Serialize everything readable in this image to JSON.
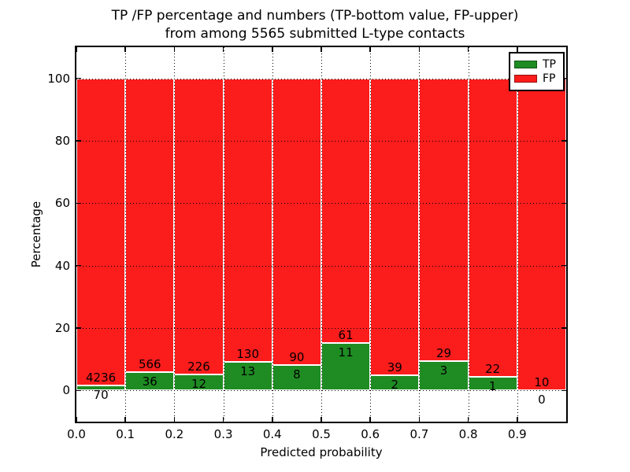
{
  "chart_data": {
    "type": "bar",
    "stacked": true,
    "title_line1": "TP /FP percentage and numbers (TP-bottom value, FP-upper)",
    "title_line2": "from among 5565 submitted L-type contacts",
    "total_contacts": 5565,
    "xlabel": "Predicted probability",
    "ylabel": "Percentage",
    "categories": [
      "0.0-0.1",
      "0.1-0.2",
      "0.2-0.3",
      "0.3-0.4",
      "0.4-0.5",
      "0.5-0.6",
      "0.6-0.7",
      "0.7-0.8",
      "0.8-0.9",
      "0.9-1.0"
    ],
    "bin_width": 0.1,
    "series": [
      {
        "name": "TP",
        "color": "#1f8c23",
        "counts": [
          70,
          36,
          12,
          13,
          8,
          11,
          2,
          3,
          1,
          0
        ],
        "percentages": [
          1.63,
          5.98,
          5.04,
          9.09,
          8.16,
          15.28,
          4.88,
          9.38,
          4.35,
          0.0
        ]
      },
      {
        "name": "FP",
        "color": "#fb1c1c",
        "counts": [
          4236,
          566,
          226,
          130,
          90,
          61,
          39,
          29,
          22,
          10
        ],
        "percentages": [
          98.37,
          94.02,
          94.96,
          90.91,
          91.84,
          84.72,
          95.12,
          90.62,
          95.65,
          100.0
        ]
      }
    ],
    "xlim": [
      0.0,
      1.0
    ],
    "ylim": [
      -10,
      110
    ],
    "xticks": [
      "0.0",
      "0.1",
      "0.2",
      "0.3",
      "0.4",
      "0.5",
      "0.6",
      "0.7",
      "0.8",
      "0.9"
    ],
    "yticks": [
      0,
      20,
      40,
      60,
      80,
      100
    ],
    "grid": "dotted",
    "legend": {
      "position": "upper-right"
    }
  }
}
